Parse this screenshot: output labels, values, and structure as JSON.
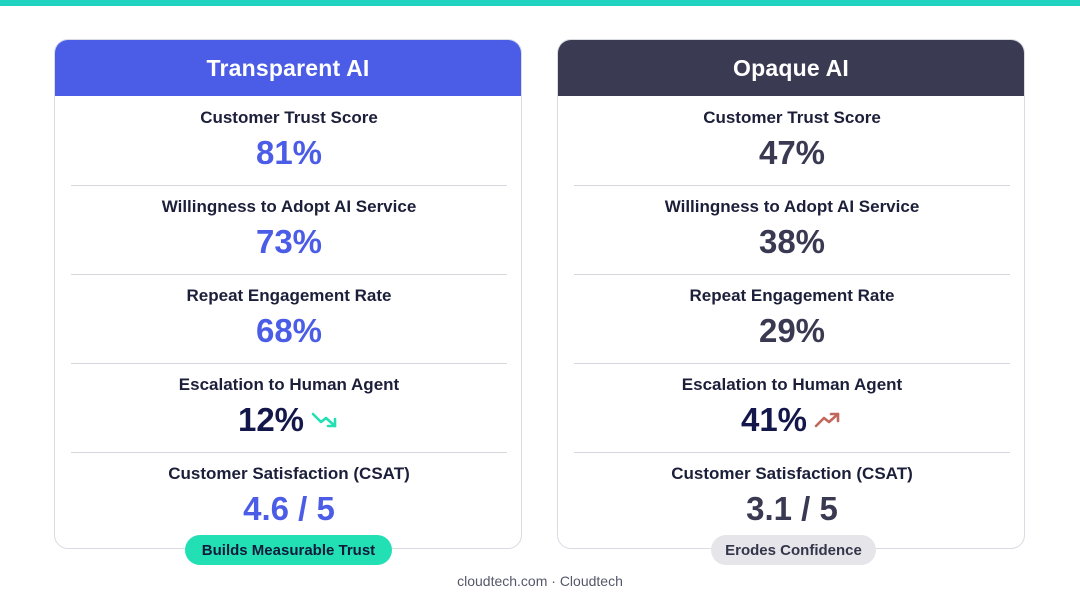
{
  "cards": {
    "left": {
      "title": "Transparent AI",
      "metrics": [
        {
          "label": "Customer Trust Score",
          "value": "81%"
        },
        {
          "label": "Willingness to Adopt AI Service",
          "value": "73%"
        },
        {
          "label": "Repeat Engagement Rate",
          "value": "68%"
        },
        {
          "label": "Escalation to Human Agent",
          "value": "12%",
          "trend": "trend-down-icon"
        },
        {
          "label": "Customer Satisfaction (CSAT)",
          "value": "4.6 / 5"
        }
      ],
      "badge": "Builds Measurable Trust",
      "colors": {
        "header": "#4b5ce6",
        "value": "#4b5ce6",
        "badge": "#22e0b4",
        "trend": "#22e0b4"
      }
    },
    "right": {
      "title": "Opaque AI",
      "metrics": [
        {
          "label": "Customer Trust Score",
          "value": "47%"
        },
        {
          "label": "Willingness to Adopt AI Service",
          "value": "38%"
        },
        {
          "label": "Repeat Engagement Rate",
          "value": "29%"
        },
        {
          "label": "Escalation to Human Agent",
          "value": "41%",
          "trend": "trend-up-icon"
        },
        {
          "label": "Customer Satisfaction (CSAT)",
          "value": "3.1 / 5"
        }
      ],
      "badge": "Erodes Confidence",
      "colors": {
        "header": "#3a3b52",
        "value": "#393a52",
        "badge": "#e6e6ea",
        "trend": "#c2675c"
      }
    }
  },
  "footer": "cloudtech.com · Cloudtech",
  "accent_bar_color": "#1fd3c0"
}
